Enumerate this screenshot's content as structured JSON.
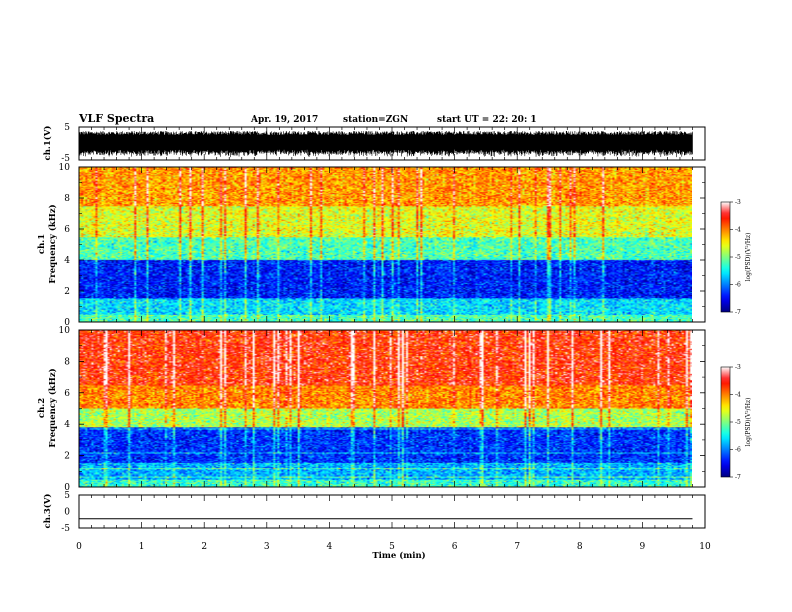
{
  "header": {
    "title": "VLF Spectra",
    "date": "Apr. 19, 2017",
    "station": "station=ZGN",
    "start": "start UT =  22: 20: 1"
  },
  "colors": {
    "scale": [
      "#000080",
      "#0000ff",
      "#0080ff",
      "#00ffff",
      "#80ff80",
      "#ffff00",
      "#ff8000",
      "#ff0000",
      "#ffffff"
    ],
    "wave": "#000000"
  },
  "chart_data": [
    {
      "type": "line",
      "name": "ch1-waveform",
      "ylabel": "ch.1(V)",
      "ylim": [
        -5,
        5
      ],
      "yticks": [
        "5",
        "-5"
      ],
      "xlim": [
        0,
        10
      ],
      "note_values": "noisy waveform with envelope approx -4 to 4 V over 0-9.8 min"
    },
    {
      "type": "heatmap",
      "name": "ch1-spectrogram",
      "ylabel": "ch.1\nFrequency (kHz)",
      "ylabel_lines": [
        "ch.1",
        "Frequency (kHz)"
      ],
      "ylim": [
        0,
        10
      ],
      "yticks": [
        "0",
        "2",
        "4",
        "6",
        "8",
        "10"
      ],
      "xlim": [
        0,
        10
      ],
      "data_end_min": 9.8,
      "band_log_psd": [
        {
          "f": [
            0,
            0.5
          ],
          "level": -5.2
        },
        {
          "f": [
            0.5,
            1.5
          ],
          "level": -5.6
        },
        {
          "f": [
            1.5,
            4.0
          ],
          "level": -6.4
        },
        {
          "f": [
            4.0,
            5.5
          ],
          "level": -5.2
        },
        {
          "f": [
            5.5,
            7.5
          ],
          "level": -4.6
        },
        {
          "f": [
            7.5,
            10
          ],
          "level": -4.1
        }
      ],
      "colorbar": {
        "label": "log(PSD)(V²/Hz)",
        "ticks": [
          "-3",
          "-4",
          "-5",
          "-6",
          "-7"
        ],
        "range": [
          -7,
          -3
        ]
      }
    },
    {
      "type": "heatmap",
      "name": "ch2-spectrogram",
      "ylabel": "ch.2\nFrequency (kHz)",
      "ylabel_lines": [
        "ch.2",
        "Frequency (kHz)"
      ],
      "ylim": [
        0,
        10
      ],
      "yticks": [
        "0",
        "2",
        "4",
        "6",
        "8",
        "10"
      ],
      "xlim": [
        0,
        10
      ],
      "data_end_min": 9.8,
      "band_log_psd": [
        {
          "f": [
            0,
            0.5
          ],
          "level": -5.3
        },
        {
          "f": [
            0.5,
            1.5
          ],
          "level": -5.8
        },
        {
          "f": [
            1.5,
            3.8
          ],
          "level": -6.3
        },
        {
          "f": [
            3.8,
            5.0
          ],
          "level": -4.8
        },
        {
          "f": [
            5.0,
            6.5
          ],
          "level": -4.0
        },
        {
          "f": [
            6.5,
            10
          ],
          "level": -3.6
        }
      ],
      "colorbar": {
        "label": "log(PSD)(V²/Hz)",
        "ticks": [
          "-3",
          "-4",
          "-5",
          "-6",
          "-7"
        ],
        "range": [
          -7,
          -3
        ]
      }
    },
    {
      "type": "line",
      "name": "ch3-waveform",
      "ylabel": "ch.3(V)",
      "ylim": [
        -5,
        5
      ],
      "yticks": [
        "5",
        "0",
        "-5"
      ],
      "xlim": [
        0,
        10
      ],
      "x": [
        0,
        9.8
      ],
      "y": [
        -2.2,
        -2.2
      ]
    }
  ],
  "xaxis": {
    "label": "Time (min)",
    "ticks": [
      "0",
      "1",
      "2",
      "3",
      "4",
      "5",
      "6",
      "7",
      "8",
      "9",
      "10"
    ]
  }
}
